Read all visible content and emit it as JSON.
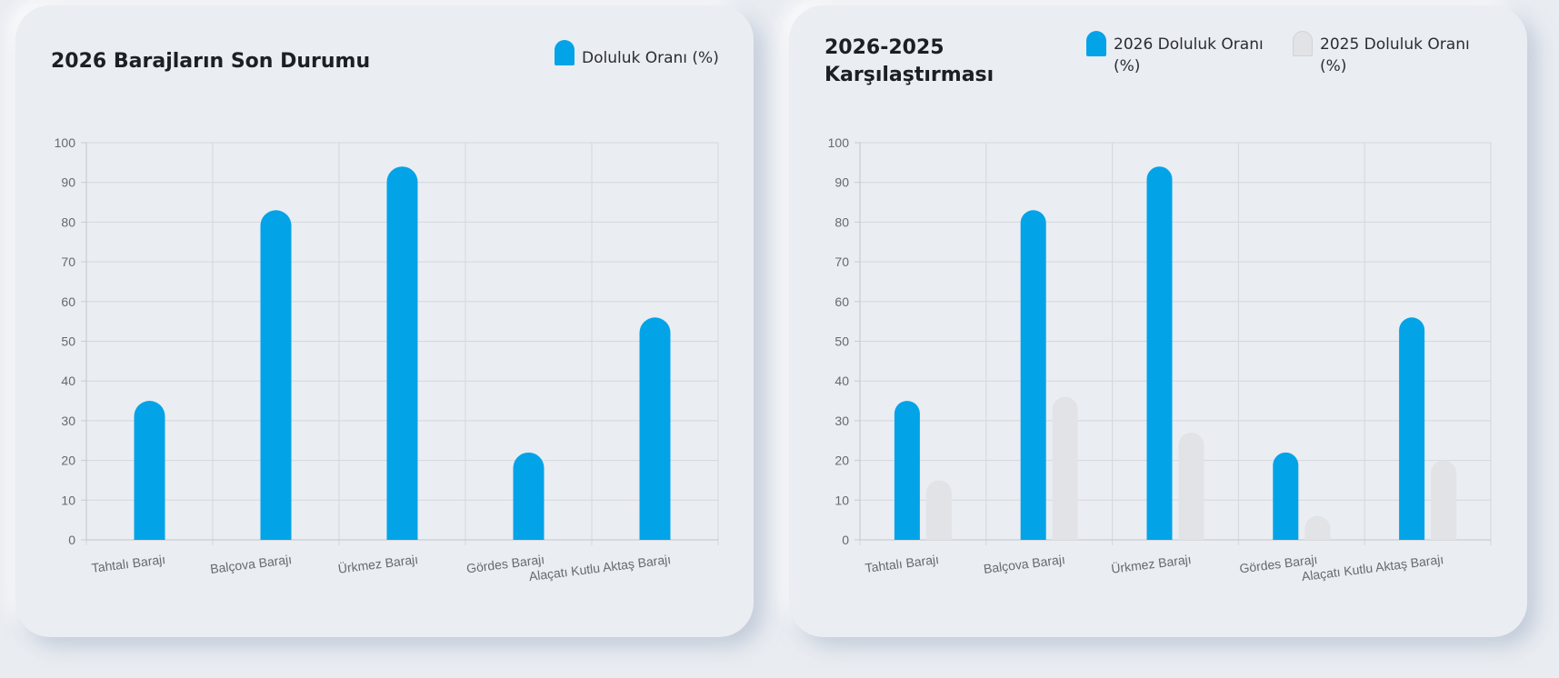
{
  "cards": [
    {
      "title": "2026 Barajların Son Durumu",
      "legend": [
        {
          "label": "Doluluk Oranı (%)",
          "color": "#03a3e8",
          "border": "#03a3e8"
        }
      ]
    },
    {
      "title": "2026-2025 Karşılaştırması",
      "legend": [
        {
          "label": "2026 Doluluk Oranı (%)",
          "color": "#03a3e8",
          "border": "#03a3e8"
        },
        {
          "label": "2025 Doluluk Oranı (%)",
          "color": "#e1e3e6",
          "border": "#d0d3d7"
        }
      ]
    }
  ],
  "chart_data": [
    {
      "type": "bar",
      "title": "2026 Barajların Son Durumu",
      "categories": [
        "Tahtalı Barajı",
        "Balçova Barajı",
        "Ürkmez Barajı",
        "Gördes Barajı",
        "Alaçatı Kutlu Aktaş Barajı"
      ],
      "series": [
        {
          "name": "Doluluk Oranı (%)",
          "values": [
            35,
            83,
            94,
            22,
            56
          ],
          "color": "#03a3e8"
        }
      ],
      "ylim": [
        0,
        100
      ],
      "yticks": [
        0,
        10,
        20,
        30,
        40,
        50,
        60,
        70,
        80,
        90,
        100
      ],
      "grid": true,
      "legend_position": "top-right"
    },
    {
      "type": "bar",
      "title": "2026-2025 Karşılaştırması",
      "categories": [
        "Tahtalı Barajı",
        "Balçova Barajı",
        "Ürkmez Barajı",
        "Gördes Barajı",
        "Alaçatı Kutlu Aktaş Barajı"
      ],
      "series": [
        {
          "name": "2026 Doluluk Oranı (%)",
          "values": [
            35,
            83,
            94,
            22,
            56
          ],
          "color": "#03a3e8"
        },
        {
          "name": "2025 Doluluk Oranı (%)",
          "values": [
            15,
            36,
            27,
            6,
            20
          ],
          "color": "#e1e3e6"
        }
      ],
      "ylim": [
        0,
        100
      ],
      "yticks": [
        0,
        10,
        20,
        30,
        40,
        50,
        60,
        70,
        80,
        90,
        100
      ],
      "grid": true,
      "legend_position": "top-right"
    }
  ]
}
